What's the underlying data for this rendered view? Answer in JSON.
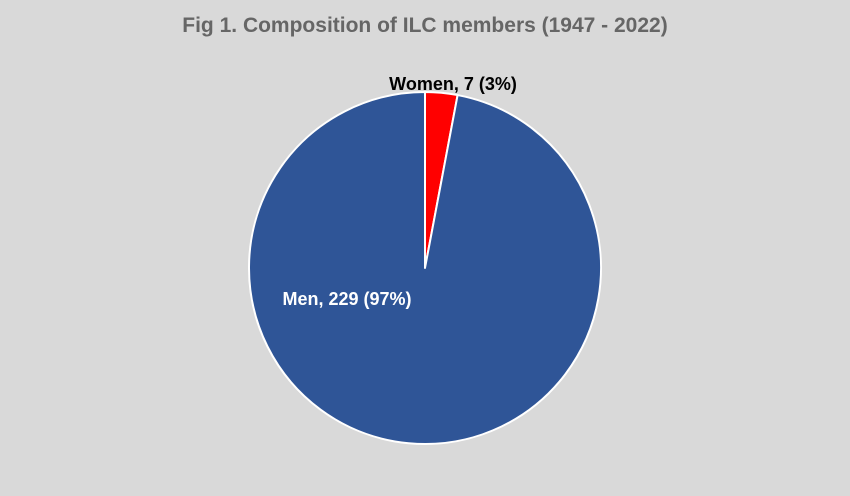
{
  "chart_data": {
    "type": "pie",
    "title": "Fig 1. Composition of ILC members (1947 - 2022)",
    "slices": [
      {
        "name": "Women",
        "value": 7,
        "percent": 3,
        "label": "Women, 7 (3%)",
        "color": "#ff0000",
        "label_color": "#000000"
      },
      {
        "name": "Men",
        "value": 229,
        "percent": 97,
        "label": "Men, 229 (97%)",
        "color": "#2f5597",
        "label_color": "#ffffff"
      }
    ],
    "start_angle": "12 o'clock",
    "direction": "clockwise",
    "background": "#d9d9d9",
    "legend": "none"
  }
}
